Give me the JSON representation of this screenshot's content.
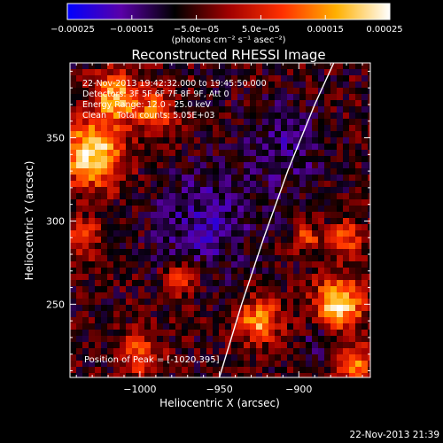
{
  "chart_data": {
    "type": "heatmap",
    "title": "Reconstructed RHESSI Image",
    "xlabel": "Heliocentric X (arcsec)",
    "ylabel": "Heliocentric Y (arcsec)",
    "xlim": [
      -1044,
      -855
    ],
    "ylim": [
      206,
      395
    ],
    "x_ticks": [
      -1000,
      -950,
      -900
    ],
    "x_tick_labels": [
      "−1000",
      "−950",
      "−900"
    ],
    "y_ticks": [
      250,
      300,
      350
    ],
    "y_tick_labels": [
      "250",
      "300",
      "350"
    ],
    "colorbar": {
      "range": [
        -0.00025,
        0.00025
      ],
      "ticks": [
        -0.00025,
        -0.00015,
        -5e-05,
        5e-05,
        0.00015,
        0.00025
      ],
      "tick_labels": [
        "−0.00025",
        "−0.00015",
        "−5.0e−05",
        "5.0e−05",
        "0.00015",
        "0.00025"
      ],
      "unit_label": "(photons cm⁻² s⁻¹ asec⁻²)",
      "colors": [
        "#0000ff",
        "#5a00a8",
        "#000000",
        "#a00000",
        "#ff3000",
        "#ffb000",
        "#ffffff"
      ]
    },
    "info_lines": [
      "22-Nov-2013 19:42:32.000 to 19:45:50.000",
      "Detectors: 3F 5F 6F 7F 8F 9F, Att 0",
      "Energy Range: 12.0 - 25.0 keV",
      "Clean    Total counts: 5.05E+03"
    ],
    "peak_label": "Position of Peak = [-1020,395]",
    "limb_curve": [
      [
        -950,
        206
      ],
      [
        -936,
        250
      ],
      [
        -922,
        290
      ],
      [
        -907,
        330
      ],
      [
        -890,
        370
      ],
      [
        -878,
        395
      ]
    ],
    "hot_regions": [
      {
        "x": -1030,
        "y": 340,
        "amp": 1.0,
        "r": 18
      },
      {
        "x": -1015,
        "y": 375,
        "amp": 0.8,
        "r": 14
      },
      {
        "x": -990,
        "y": 365,
        "amp": 0.55,
        "r": 12
      },
      {
        "x": -1035,
        "y": 290,
        "amp": 0.45,
        "r": 10
      },
      {
        "x": -1000,
        "y": 220,
        "amp": 0.5,
        "r": 12
      },
      {
        "x": -975,
        "y": 265,
        "amp": 0.45,
        "r": 9
      },
      {
        "x": -895,
        "y": 290,
        "amp": 0.55,
        "r": 7
      },
      {
        "x": -925,
        "y": 240,
        "amp": 0.75,
        "r": 12
      },
      {
        "x": -875,
        "y": 250,
        "amp": 1.0,
        "r": 14
      },
      {
        "x": -865,
        "y": 215,
        "amp": 0.7,
        "r": 10
      },
      {
        "x": -870,
        "y": 290,
        "amp": 0.5,
        "r": 10
      }
    ],
    "cold_regions": [
      {
        "x": -960,
        "y": 300,
        "amp": 0.6,
        "r": 30
      },
      {
        "x": -910,
        "y": 345,
        "amp": 0.5,
        "r": 25
      },
      {
        "x": -885,
        "y": 230,
        "amp": 0.5,
        "r": 10
      }
    ]
  },
  "footer": {
    "date_label": "22-Nov-2013 21:39"
  }
}
